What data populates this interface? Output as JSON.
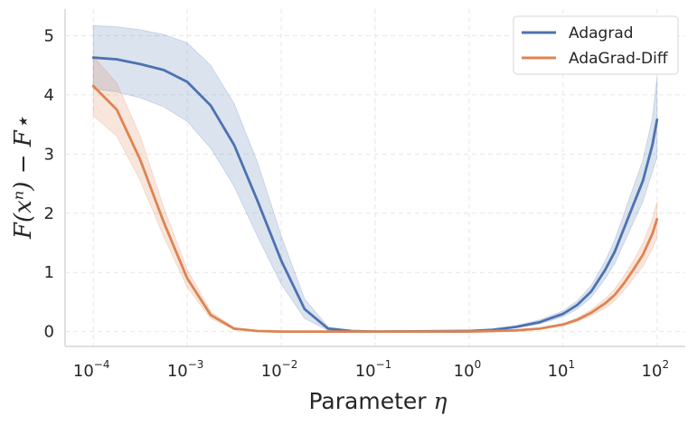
{
  "chart_data": {
    "type": "line",
    "xscale": "log",
    "xlim_exp": [
      -4.3,
      2.3
    ],
    "ylim": [
      -0.25,
      5.45
    ],
    "xticks": [
      {
        "base": "10",
        "exp": "−4",
        "value_exp": -4
      },
      {
        "base": "10",
        "exp": "−3",
        "value_exp": -3
      },
      {
        "base": "10",
        "exp": "−2",
        "value_exp": -2
      },
      {
        "base": "10",
        "exp": "−1",
        "value_exp": -1
      },
      {
        "base": "10",
        "exp": "0",
        "value_exp": 0
      },
      {
        "base": "10",
        "exp": "1",
        "value_exp": 1
      },
      {
        "base": "10",
        "exp": "2",
        "value_exp": 2
      }
    ],
    "yticks": [
      {
        "label": "0",
        "value": 0
      },
      {
        "label": "1",
        "value": 1
      },
      {
        "label": "2",
        "value": 2
      },
      {
        "label": "3",
        "value": 3
      },
      {
        "label": "4",
        "value": 4
      },
      {
        "label": "5",
        "value": 5
      }
    ],
    "xlabel_text": "Parameter",
    "xlabel_symbol": "η",
    "ylabel": "F(xⁿ) − F⋆",
    "grid": true,
    "legend_position": "top-right",
    "series": [
      {
        "name": "Adagrad",
        "color": "#4c72b0",
        "x_log10": [
          -4.0,
          -3.75,
          -3.5,
          -3.25,
          -3.0,
          -2.75,
          -2.5,
          -2.25,
          -2.0,
          -1.75,
          -1.5,
          -1.25,
          -1.0,
          0.0,
          0.25,
          0.5,
          0.75,
          1.0,
          1.15,
          1.3,
          1.45,
          1.55,
          1.65,
          1.75,
          1.85,
          1.95,
          2.0
        ],
        "mean": [
          4.63,
          4.6,
          4.52,
          4.42,
          4.22,
          3.82,
          3.15,
          2.2,
          1.2,
          0.38,
          0.05,
          0.01,
          0.0,
          0.01,
          0.03,
          0.08,
          0.16,
          0.3,
          0.45,
          0.68,
          1.05,
          1.35,
          1.75,
          2.15,
          2.55,
          3.15,
          3.58
        ],
        "lower": [
          4.1,
          4.05,
          3.95,
          3.8,
          3.55,
          3.1,
          2.45,
          1.6,
          0.8,
          0.22,
          0.02,
          0.0,
          0.0,
          0.0,
          0.02,
          0.06,
          0.13,
          0.25,
          0.38,
          0.58,
          0.9,
          1.15,
          1.5,
          1.85,
          2.2,
          2.7,
          2.95
        ],
        "upper": [
          5.17,
          5.15,
          5.1,
          5.02,
          4.88,
          4.5,
          3.85,
          2.85,
          1.62,
          0.55,
          0.08,
          0.02,
          0.01,
          0.02,
          0.04,
          0.1,
          0.2,
          0.35,
          0.52,
          0.78,
          1.2,
          1.55,
          2.0,
          2.45,
          2.9,
          3.6,
          4.3
        ]
      },
      {
        "name": "AdaGrad-Diff",
        "color": "#dd8452",
        "x_log10": [
          -4.0,
          -3.75,
          -3.5,
          -3.25,
          -3.0,
          -2.75,
          -2.5,
          -2.25,
          -2.0,
          -1.75,
          -1.5,
          -1.0,
          0.0,
          0.5,
          0.75,
          1.0,
          1.15,
          1.3,
          1.45,
          1.55,
          1.65,
          1.75,
          1.85,
          1.95,
          2.0
        ],
        "mean": [
          4.15,
          3.75,
          2.9,
          1.85,
          0.9,
          0.28,
          0.05,
          0.01,
          0.0,
          0.0,
          0.0,
          0.0,
          0.0,
          0.02,
          0.05,
          0.12,
          0.2,
          0.32,
          0.48,
          0.62,
          0.82,
          1.05,
          1.3,
          1.65,
          1.9
        ],
        "lower": [
          3.65,
          3.3,
          2.55,
          1.6,
          0.75,
          0.22,
          0.03,
          0.0,
          0.0,
          0.0,
          0.0,
          0.0,
          0.0,
          0.01,
          0.04,
          0.1,
          0.17,
          0.27,
          0.4,
          0.52,
          0.7,
          0.9,
          1.1,
          1.4,
          1.6
        ],
        "upper": [
          4.65,
          4.2,
          3.3,
          2.1,
          1.05,
          0.34,
          0.07,
          0.02,
          0.01,
          0.0,
          0.0,
          0.0,
          0.01,
          0.03,
          0.06,
          0.14,
          0.23,
          0.37,
          0.56,
          0.72,
          0.95,
          1.2,
          1.5,
          1.9,
          2.2
        ]
      }
    ]
  }
}
